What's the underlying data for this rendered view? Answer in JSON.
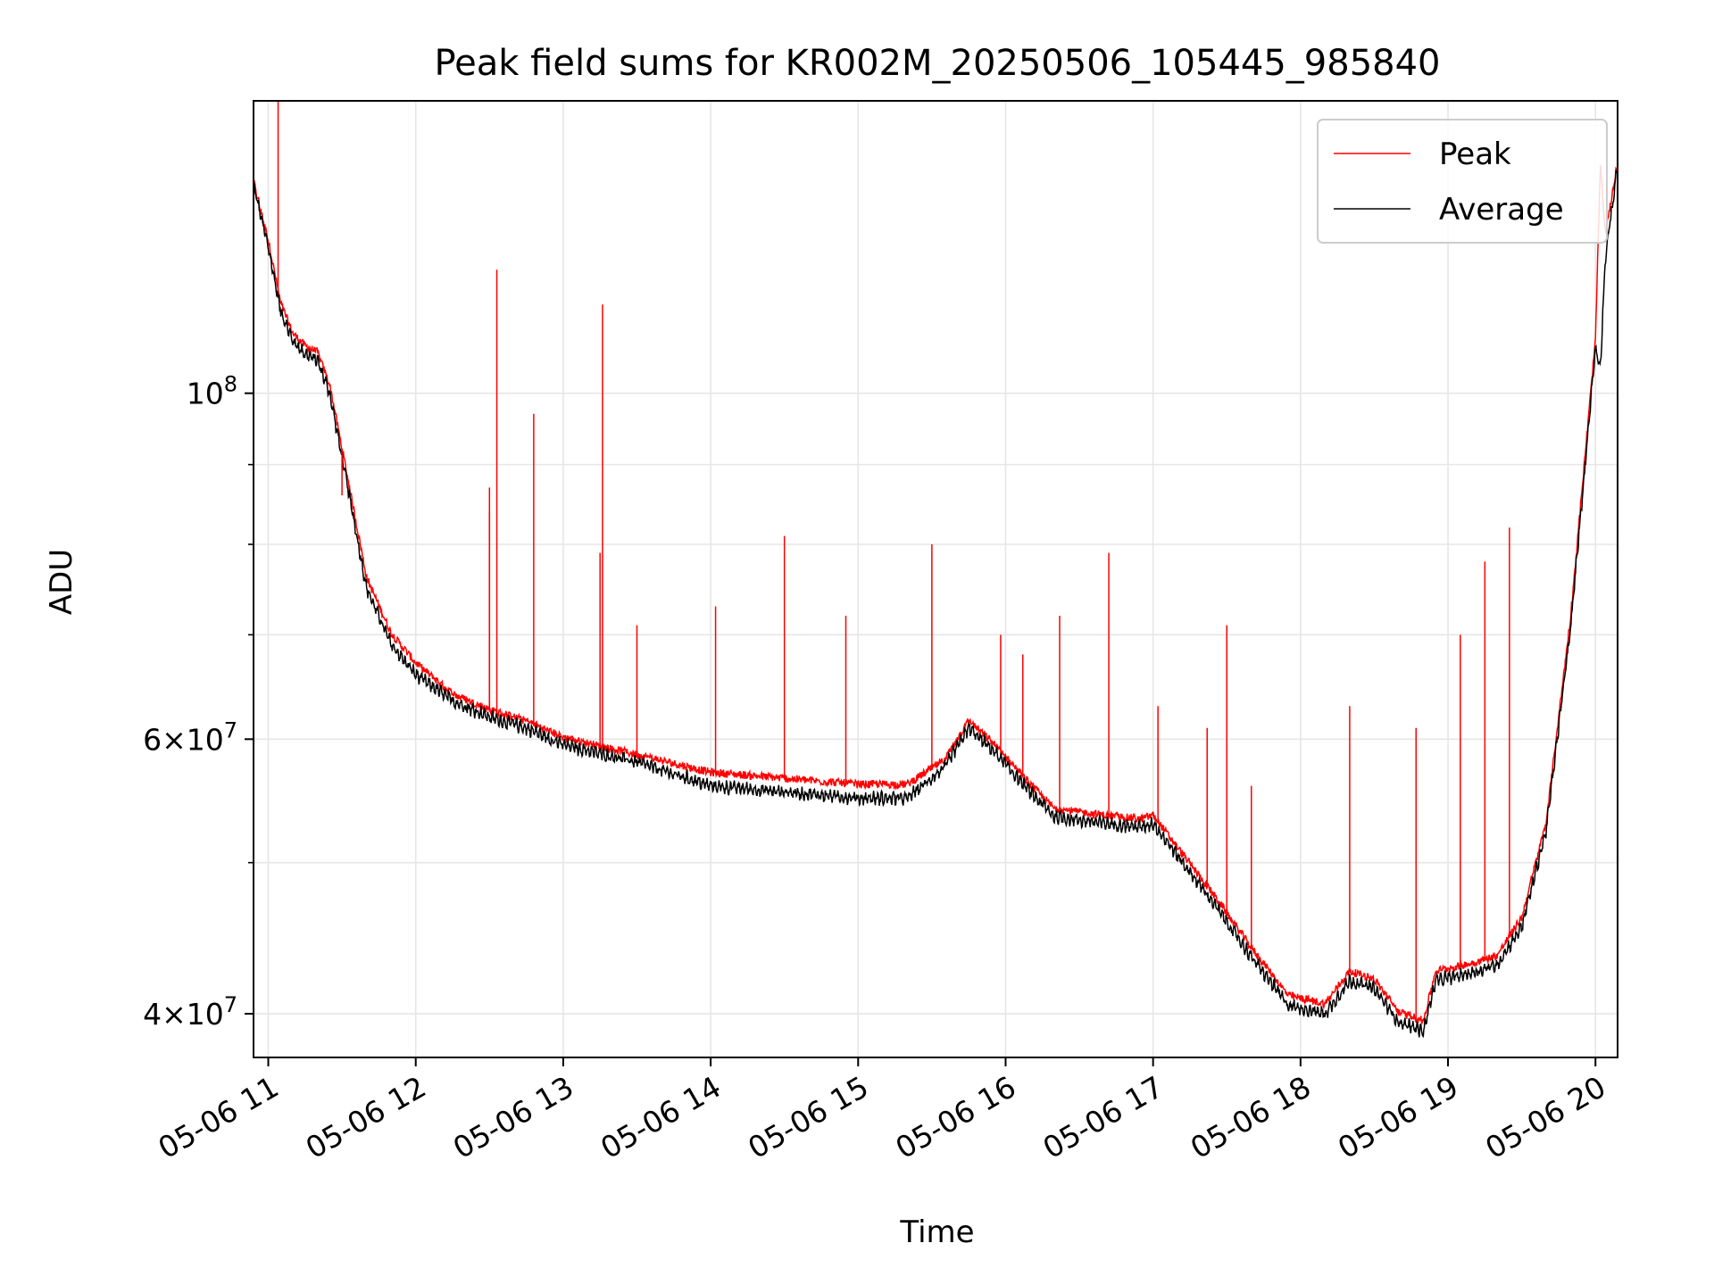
{
  "chart_data": {
    "type": "line",
    "title": "Peak field sums for KR002M_20250506_105445_985840",
    "xlabel": "Time",
    "ylabel": "ADU",
    "yscale": "log",
    "xlim": [
      "2025-05-06 10:54",
      "2025-05-06 20:09"
    ],
    "ylim": [
      37500000,
      154000000
    ],
    "grid": true,
    "legend": "upper right",
    "x_ticks": [
      {
        "time": "2025-05-06 11:00",
        "label": "05-06 11"
      },
      {
        "time": "2025-05-06 12:00",
        "label": "05-06 12"
      },
      {
        "time": "2025-05-06 13:00",
        "label": "05-06 13"
      },
      {
        "time": "2025-05-06 14:00",
        "label": "05-06 14"
      },
      {
        "time": "2025-05-06 15:00",
        "label": "05-06 15"
      },
      {
        "time": "2025-05-06 16:00",
        "label": "05-06 16"
      },
      {
        "time": "2025-05-06 17:00",
        "label": "05-06 17"
      },
      {
        "time": "2025-05-06 18:00",
        "label": "05-06 18"
      },
      {
        "time": "2025-05-06 19:00",
        "label": "05-06 19"
      },
      {
        "time": "2025-05-06 20:00",
        "label": "05-06 20"
      }
    ],
    "y_ticks": [
      {
        "value": 40000000,
        "mantissa": "4",
        "exp": "7"
      },
      {
        "value": 60000000,
        "mantissa": "6",
        "exp": "7"
      },
      {
        "value": 100000000,
        "mantissa": "",
        "exp": "8"
      }
    ],
    "y_minor_ticks": [
      50000000,
      70000000,
      80000000,
      90000000
    ],
    "series": [
      {
        "name": "Peak",
        "color": "#ff0000",
        "x": [
          "2025-05-06 10:54",
          "2025-05-06 11:00",
          "2025-05-06 11:05",
          "2025-05-06 11:10",
          "2025-05-06 11:15",
          "2025-05-06 11:20",
          "2025-05-06 11:25",
          "2025-05-06 11:30",
          "2025-05-06 11:40",
          "2025-05-06 11:50",
          "2025-05-06 12:00",
          "2025-05-06 12:15",
          "2025-05-06 12:30",
          "2025-05-06 12:45",
          "2025-05-06 13:00",
          "2025-05-06 13:30",
          "2025-05-06 14:00",
          "2025-05-06 14:30",
          "2025-05-06 15:00",
          "2025-05-06 15:20",
          "2025-05-06 15:35",
          "2025-05-06 15:45",
          "2025-05-06 15:55",
          "2025-05-06 16:10",
          "2025-05-06 16:20",
          "2025-05-06 16:40",
          "2025-05-06 16:55",
          "2025-05-06 17:00",
          "2025-05-06 17:10",
          "2025-05-06 17:25",
          "2025-05-06 17:40",
          "2025-05-06 17:55",
          "2025-05-06 18:10",
          "2025-05-06 18:20",
          "2025-05-06 18:30",
          "2025-05-06 18:40",
          "2025-05-06 18:50",
          "2025-05-06 18:55",
          "2025-05-06 19:10",
          "2025-05-06 19:20",
          "2025-05-06 19:30",
          "2025-05-06 19:40",
          "2025-05-06 19:50",
          "2025-05-06 20:00",
          "2025-05-06 20:02",
          "2025-05-06 20:04",
          "2025-05-06 20:09"
        ],
        "y": [
          136000000,
          125000000,
          114000000,
          109000000,
          107000000,
          106000000,
          101000000,
          92000000,
          76000000,
          70000000,
          67000000,
          64000000,
          62500000,
          61500000,
          60000000,
          58500000,
          57000000,
          56500000,
          56000000,
          56000000,
          58000000,
          61500000,
          59500000,
          56000000,
          54000000,
          53500000,
          53200000,
          53500000,
          51000000,
          47500000,
          44000000,
          41000000,
          40500000,
          42500000,
          42000000,
          40000000,
          39500000,
          42500000,
          43000000,
          43500000,
          46000000,
          53000000,
          72000000,
          108000000,
          140000000,
          126000000,
          140000000
        ],
        "spikes": [
          {
            "x": "2025-05-06 11:04",
            "y": 154000000
          },
          {
            "x": "2025-05-06 11:30",
            "y": 86000000
          },
          {
            "x": "2025-05-06 12:30",
            "y": 84000000
          },
          {
            "x": "2025-05-06 12:30",
            "y": 87000000
          },
          {
            "x": "2025-05-06 12:33",
            "y": 120000000
          },
          {
            "x": "2025-05-06 12:48",
            "y": 97000000
          },
          {
            "x": "2025-05-06 13:15",
            "y": 79000000
          },
          {
            "x": "2025-05-06 13:16",
            "y": 114000000
          },
          {
            "x": "2025-05-06 13:30",
            "y": 71000000
          },
          {
            "x": "2025-05-06 14:02",
            "y": 73000000
          },
          {
            "x": "2025-05-06 14:30",
            "y": 81000000
          },
          {
            "x": "2025-05-06 14:55",
            "y": 72000000
          },
          {
            "x": "2025-05-06 15:30",
            "y": 80000000
          },
          {
            "x": "2025-05-06 15:58",
            "y": 70000000
          },
          {
            "x": "2025-05-06 16:07",
            "y": 68000000
          },
          {
            "x": "2025-05-06 16:22",
            "y": 72000000
          },
          {
            "x": "2025-05-06 16:42",
            "y": 79000000
          },
          {
            "x": "2025-05-06 17:02",
            "y": 63000000
          },
          {
            "x": "2025-05-06 17:22",
            "y": 61000000
          },
          {
            "x": "2025-05-06 17:30",
            "y": 71000000
          },
          {
            "x": "2025-05-06 17:40",
            "y": 56000000
          },
          {
            "x": "2025-05-06 18:20",
            "y": 63000000
          },
          {
            "x": "2025-05-06 18:47",
            "y": 61000000
          },
          {
            "x": "2025-05-06 19:05",
            "y": 70000000
          },
          {
            "x": "2025-05-06 19:15",
            "y": 78000000
          },
          {
            "x": "2025-05-06 19:25",
            "y": 82000000
          }
        ]
      },
      {
        "name": "Average",
        "color": "#000000",
        "x": [
          "2025-05-06 10:54",
          "2025-05-06 11:00",
          "2025-05-06 11:05",
          "2025-05-06 11:10",
          "2025-05-06 11:15",
          "2025-05-06 11:20",
          "2025-05-06 11:25",
          "2025-05-06 11:30",
          "2025-05-06 11:40",
          "2025-05-06 11:50",
          "2025-05-06 12:00",
          "2025-05-06 12:15",
          "2025-05-06 12:30",
          "2025-05-06 12:45",
          "2025-05-06 13:00",
          "2025-05-06 13:30",
          "2025-05-06 14:00",
          "2025-05-06 14:30",
          "2025-05-06 15:00",
          "2025-05-06 15:20",
          "2025-05-06 15:35",
          "2025-05-06 15:45",
          "2025-05-06 15:55",
          "2025-05-06 16:10",
          "2025-05-06 16:20",
          "2025-05-06 16:40",
          "2025-05-06 16:55",
          "2025-05-06 17:00",
          "2025-05-06 17:10",
          "2025-05-06 17:25",
          "2025-05-06 17:40",
          "2025-05-06 17:55",
          "2025-05-06 18:10",
          "2025-05-06 18:20",
          "2025-05-06 18:30",
          "2025-05-06 18:40",
          "2025-05-06 18:50",
          "2025-05-06 18:55",
          "2025-05-06 19:10",
          "2025-05-06 19:20",
          "2025-05-06 19:30",
          "2025-05-06 19:40",
          "2025-05-06 19:50",
          "2025-05-06 20:00",
          "2025-05-06 20:02",
          "2025-05-06 20:04",
          "2025-05-06 20:09"
        ],
        "y": [
          136000000,
          124000000,
          113000000,
          108000000,
          106000000,
          105000000,
          100000000,
          91000000,
          75000000,
          69000000,
          66000000,
          63500000,
          62000000,
          61000000,
          59500000,
          58000000,
          56000000,
          55500000,
          55000000,
          55000000,
          57500000,
          61000000,
          59000000,
          55500000,
          53500000,
          53000000,
          52700000,
          53000000,
          50500000,
          47000000,
          43500000,
          40500000,
          40000000,
          42000000,
          41500000,
          39500000,
          39000000,
          42000000,
          42500000,
          43000000,
          45500000,
          52500000,
          71000000,
          107000000,
          104000000,
          122000000,
          140000000
        ]
      }
    ]
  }
}
